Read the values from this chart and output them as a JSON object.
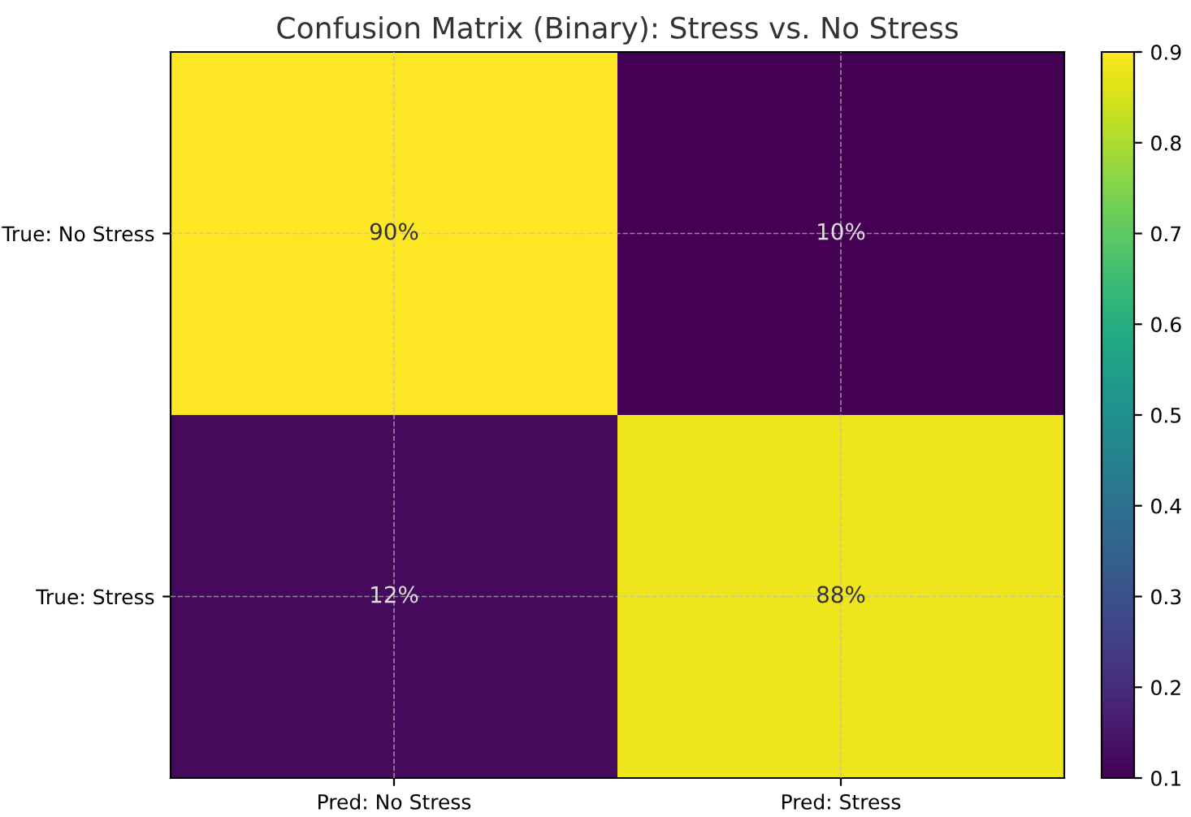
{
  "chart_data": {
    "type": "heatmap",
    "title": "Confusion Matrix (Binary): Stress vs. No Stress",
    "categories": [
      "Pred: No Stress",
      "Pred: Stress"
    ],
    "y_categories": [
      "True: No Stress",
      "True: Stress"
    ],
    "cells": [
      [
        0.9,
        0.1
      ],
      [
        0.12,
        0.88
      ]
    ],
    "cell_labels": [
      [
        "90%",
        "10%"
      ],
      [
        "12%",
        "88%"
      ]
    ],
    "clim": [
      0.1,
      0.9
    ],
    "cticks": [
      0.1,
      0.2,
      0.3,
      0.4,
      0.5,
      0.6,
      0.7,
      0.8,
      0.9
    ],
    "grid": true
  }
}
